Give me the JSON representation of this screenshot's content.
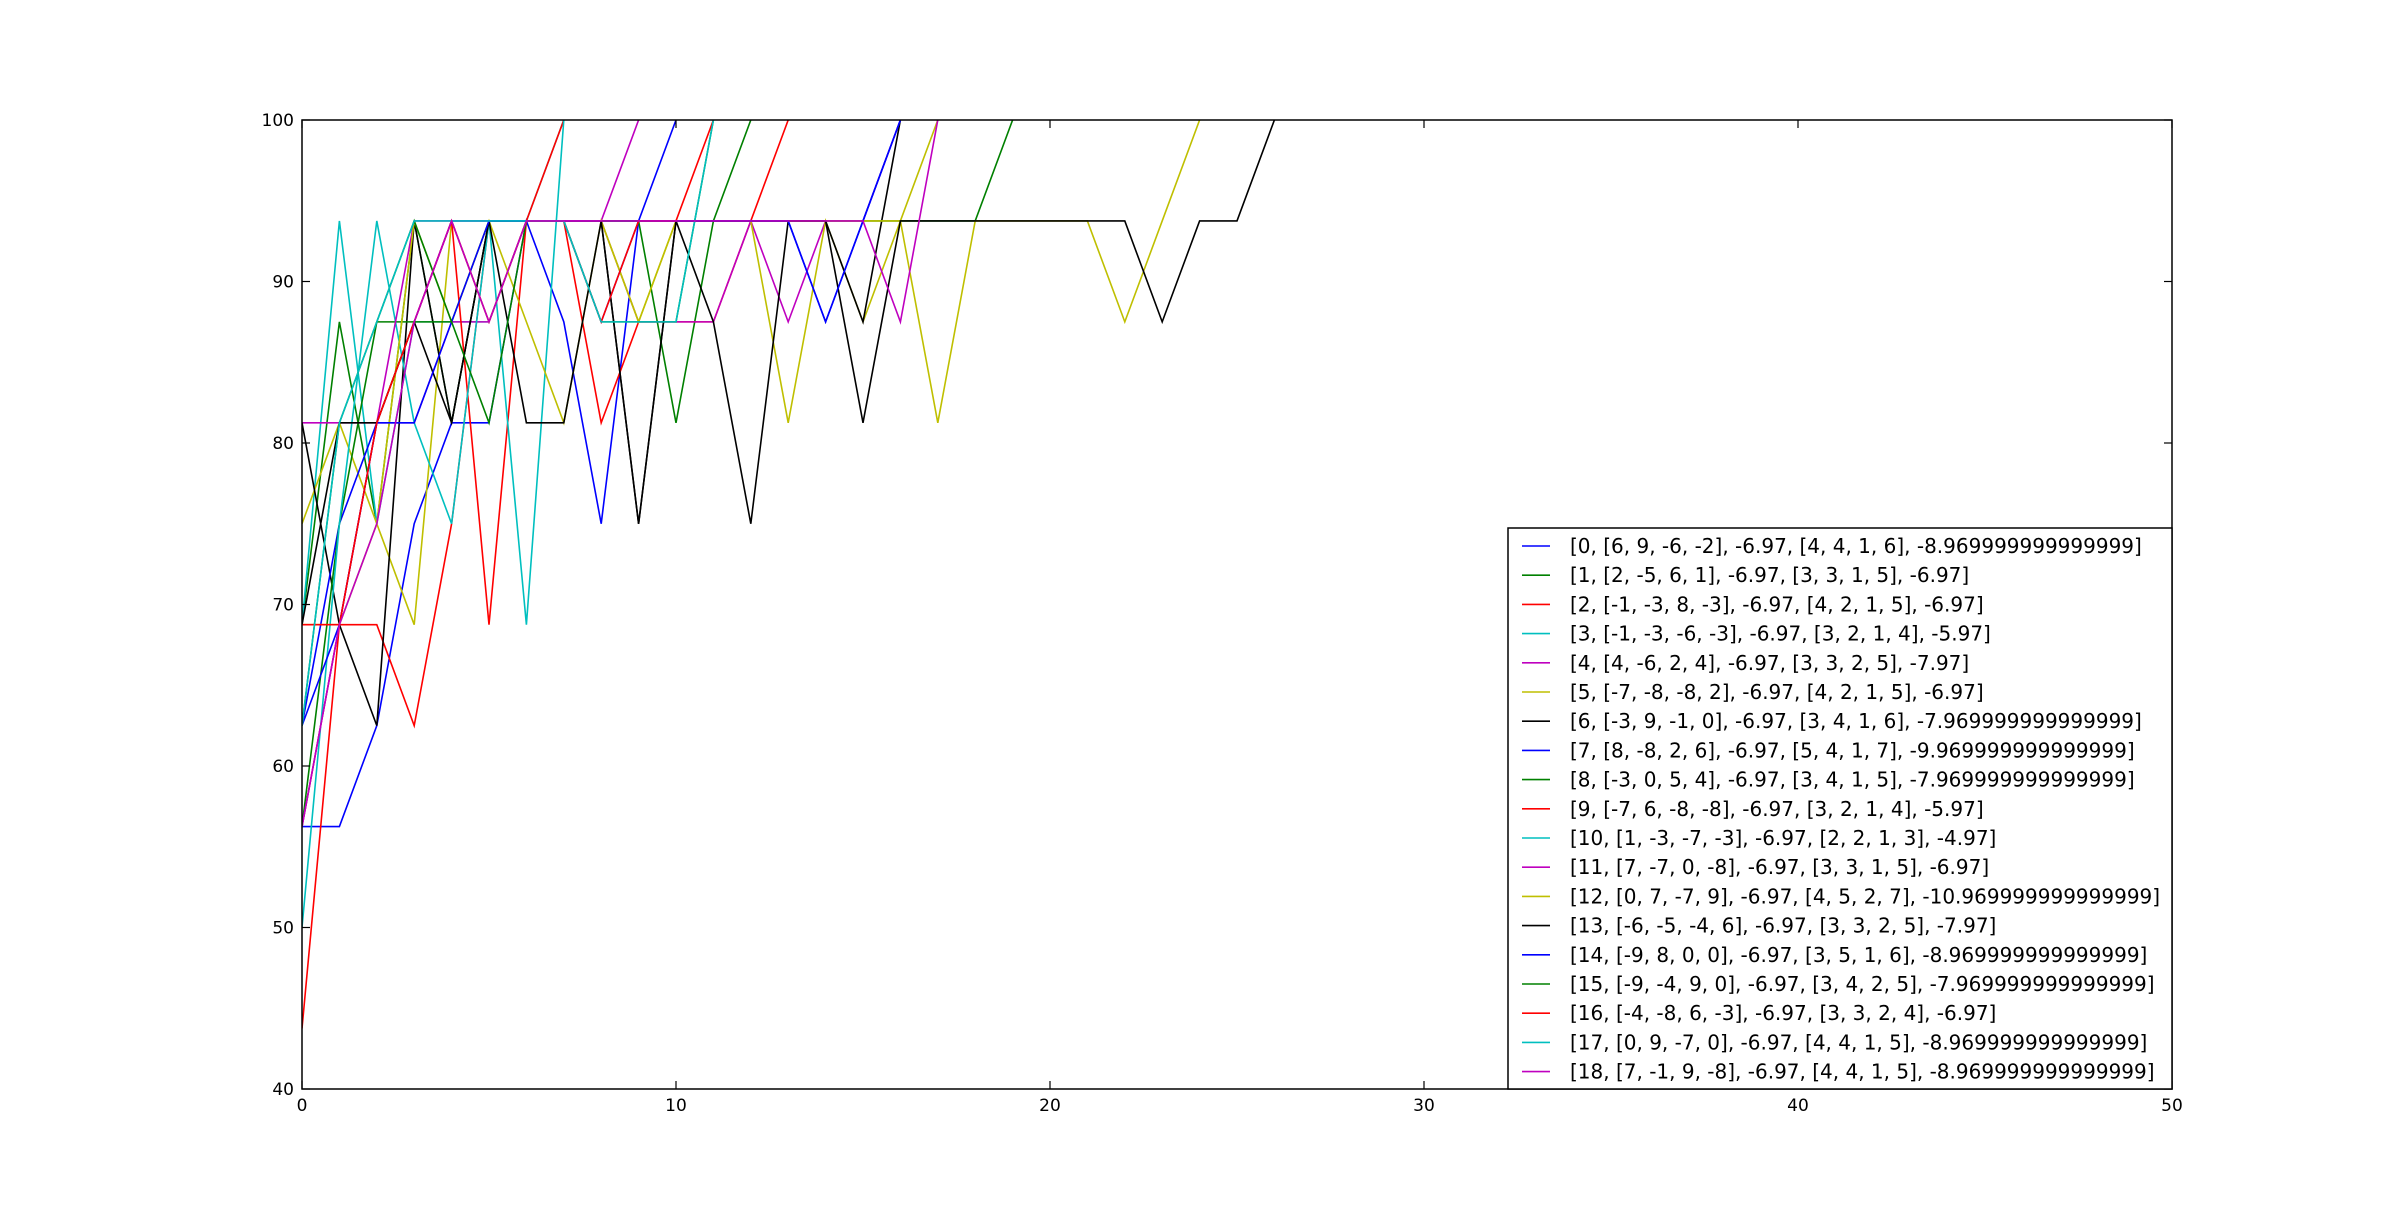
{
  "chart_data": {
    "type": "line",
    "title": "",
    "xlabel": "",
    "ylabel": "",
    "xlim": [
      0,
      50
    ],
    "ylim": [
      40,
      100
    ],
    "x_ticks": [
      "0",
      "10",
      "20",
      "30",
      "40",
      "50"
    ],
    "y_ticks": [
      "40",
      "50",
      "60",
      "70",
      "80",
      "90",
      "100"
    ],
    "grid": false,
    "legend_position": "lower-right",
    "series": [
      {
        "name": "[0, [6, 9, -6, -2], -6.97, [4, 4, 1, 6], -8.969999999999999]",
        "color": "#0000ff",
        "x": [
          0,
          1,
          2,
          3,
          4,
          5,
          6,
          7,
          8,
          9,
          10
        ],
        "y": [
          56.25,
          56.25,
          62.5,
          75,
          81.25,
          81.25,
          93.75,
          87.5,
          75,
          93.75,
          100
        ]
      },
      {
        "name": "[1, [2, -5, 6, 1], -6.97, [3, 3, 1, 5], -6.97]",
        "color": "#008000",
        "x": [
          0,
          1,
          2,
          3,
          4,
          5,
          6,
          7,
          8,
          9,
          10,
          11,
          12
        ],
        "y": [
          68.75,
          87.5,
          75,
          93.75,
          81.25,
          93.75,
          93.75,
          93.75,
          93.75,
          93.75,
          81.25,
          93.75,
          100
        ]
      },
      {
        "name": "[2, [-1, -3, 8, -3], -6.97, [4, 2, 1, 5], -6.97]",
        "color": "#ff0000",
        "x": [
          0,
          1,
          2,
          3,
          4,
          5,
          6,
          7,
          8,
          9,
          10,
          11,
          12,
          13
        ],
        "y": [
          56.25,
          68.75,
          68.75,
          62.5,
          75,
          93.75,
          93.75,
          93.75,
          81.25,
          87.5,
          87.5,
          87.5,
          93.75,
          100
        ]
      },
      {
        "name": "[3, [-1, -3, -6, -3], -6.97, [3, 2, 1, 4], -5.97]",
        "color": "#00bfbf",
        "x": [
          0,
          1,
          2,
          3,
          4,
          5,
          6,
          7
        ],
        "y": [
          68.75,
          93.75,
          75,
          87.5,
          87.5,
          87.5,
          93.75,
          100
        ]
      },
      {
        "name": "[4, [4, -6, 2, 4], -6.97, [3, 3, 2, 5], -7.97]",
        "color": "#bf00bf",
        "x": [
          0,
          1,
          2,
          3,
          4,
          5,
          6,
          7,
          8,
          9,
          10,
          11,
          12,
          13,
          14,
          15,
          16
        ],
        "y": [
          81.25,
          81.25,
          81.25,
          81.25,
          87.5,
          87.5,
          93.75,
          93.75,
          93.75,
          87.5,
          87.5,
          87.5,
          93.75,
          87.5,
          93.75,
          93.75,
          100
        ]
      },
      {
        "name": "[5, [-7, -8, -8, 2], -6.97, [4, 2, 1, 5], -6.97]",
        "color": "#bfbf00",
        "x": [
          0,
          1,
          2,
          3,
          4,
          5,
          6,
          7,
          8,
          9,
          10,
          11,
          12,
          13,
          14,
          15,
          16,
          17
        ],
        "y": [
          75,
          81.25,
          75,
          68.75,
          93.75,
          87.5,
          93.75,
          93.75,
          93.75,
          87.5,
          93.75,
          93.75,
          93.75,
          81.25,
          93.75,
          87.5,
          93.75,
          100
        ]
      },
      {
        "name": "[6, [-3, 9, -1, 0], -6.97, [3, 4, 1, 6], -7.969999999999999]",
        "color": "#000000",
        "x": [
          0,
          1,
          2,
          3,
          4,
          5,
          6,
          7,
          8,
          9,
          10,
          11,
          12,
          13,
          14,
          15,
          16
        ],
        "y": [
          81.25,
          68.75,
          62.5,
          93.75,
          81.25,
          93.75,
          93.75,
          93.75,
          93.75,
          75,
          93.75,
          87.5,
          75,
          93.75,
          93.75,
          87.5,
          100
        ]
      },
      {
        "name": "[7, [8, -8, 2, 6], -6.97, [5, 4, 1, 7], -9.969999999999999]",
        "color": "#0000ff",
        "x": [
          0,
          1,
          2,
          3,
          4,
          5,
          6,
          7,
          8,
          9,
          10,
          11,
          12,
          13,
          14,
          15,
          16
        ],
        "y": [
          62.5,
          75,
          81.25,
          87.5,
          93.75,
          93.75,
          93.75,
          93.75,
          93.75,
          93.75,
          93.75,
          93.75,
          93.75,
          93.75,
          87.5,
          93.75,
          100
        ]
      },
      {
        "name": "[8, [-3, 0, 5, 4], -6.97, [3, 4, 1, 5], -7.969999999999999]",
        "color": "#008000",
        "x": [
          0,
          1,
          2,
          3,
          4,
          5,
          6,
          7,
          8,
          9,
          10,
          11,
          12,
          13,
          14,
          15,
          16,
          17,
          18,
          19
        ],
        "y": [
          56.25,
          75,
          87.5,
          87.5,
          87.5,
          93.75,
          93.75,
          93.75,
          93.75,
          93.75,
          93.75,
          93.75,
          93.75,
          93.75,
          93.75,
          93.75,
          93.75,
          93.75,
          93.75,
          100
        ]
      },
      {
        "name": "[9, [-7, 6, -8, -8], -6.97, [3, 2, 1, 4], -5.97]",
        "color": "#ff0000",
        "x": [
          0,
          1,
          2,
          3,
          4,
          5,
          6,
          7
        ],
        "y": [
          43.75,
          68.75,
          81.25,
          87.5,
          93.75,
          68.75,
          93.75,
          100
        ]
      },
      {
        "name": "[10, [1, -3, -7, -3], -6.97, [2, 2, 1, 3], -4.97]",
        "color": "#00bfbf",
        "x": [
          0,
          1,
          2,
          3,
          4,
          5,
          6,
          7
        ],
        "y": [
          50,
          75,
          93.75,
          81.25,
          75,
          93.75,
          68.75,
          100
        ]
      },
      {
        "name": "[11, [7, -7, 0, -8], -6.97, [3, 3, 1, 5], -6.97]",
        "color": "#bf00bf",
        "x": [
          0,
          1,
          2,
          3,
          4,
          5,
          6,
          7,
          8,
          9
        ],
        "y": [
          56.25,
          68.75,
          81.25,
          93.75,
          93.75,
          93.75,
          93.75,
          93.75,
          93.75,
          100
        ]
      },
      {
        "name": "[12, [0, 7, -7, 9], -6.97, [4, 5, 2, 7], -10.969999999999999]",
        "color": "#bfbf00",
        "x": [
          0,
          1,
          2,
          3,
          4,
          5,
          6,
          7,
          8,
          9,
          10,
          11,
          12,
          13,
          14,
          15,
          16,
          17,
          18,
          19,
          20,
          21,
          22,
          23,
          24
        ],
        "y": [
          68.75,
          68.75,
          75,
          93.75,
          87.5,
          93.75,
          87.5,
          81.25,
          93.75,
          87.5,
          93.75,
          93.75,
          93.75,
          93.75,
          93.75,
          93.75,
          93.75,
          81.25,
          93.75,
          93.75,
          93.75,
          93.75,
          87.5,
          93.75,
          100
        ]
      },
      {
        "name": "[13, [-6, -5, -4, 6], -6.97, [3, 3, 2, 5], -7.97]",
        "color": "#000000",
        "x": [
          0,
          1,
          2,
          3,
          4,
          5,
          6,
          7,
          8,
          9,
          10,
          11,
          12,
          13,
          14,
          15,
          16,
          17,
          18,
          19,
          20,
          21,
          22,
          23,
          24,
          25,
          26
        ],
        "y": [
          68.75,
          81.25,
          81.25,
          87.5,
          81.25,
          93.75,
          81.25,
          81.25,
          93.75,
          75,
          93.75,
          93.75,
          93.75,
          93.75,
          93.75,
          81.25,
          93.75,
          93.75,
          93.75,
          93.75,
          93.75,
          93.75,
          93.75,
          87.5,
          93.75,
          93.75,
          100
        ]
      },
      {
        "name": "[14, [-9, 8, 0, 0], -6.97, [3, 5, 1, 6], -8.969999999999999]",
        "color": "#0000ff",
        "x": [
          0,
          1,
          2,
          3,
          4,
          5,
          6,
          7,
          8,
          9,
          10,
          11,
          12,
          13,
          14,
          15,
          16
        ],
        "y": [
          62.5,
          68.75,
          81.25,
          81.25,
          87.5,
          93.75,
          93.75,
          93.75,
          87.5,
          93.75,
          93.75,
          93.75,
          93.75,
          93.75,
          87.5,
          93.75,
          100
        ]
      },
      {
        "name": "[15, [-9, -4, 9, 0], -6.97, [3, 4, 2, 5], -7.969999999999999]",
        "color": "#008000",
        "x": [
          0,
          1,
          2,
          3,
          4,
          5,
          6,
          7,
          8,
          9,
          10,
          11
        ],
        "y": [
          62.5,
          81.25,
          87.5,
          93.75,
          87.5,
          81.25,
          93.75,
          93.75,
          87.5,
          87.5,
          87.5,
          100
        ]
      },
      {
        "name": "[16, [-4, -8, 6, -3], -6.97, [3, 3, 2, 4], -6.97]",
        "color": "#ff0000",
        "x": [
          0,
          1,
          2,
          3,
          4,
          5,
          6,
          7,
          8,
          9,
          10,
          11
        ],
        "y": [
          68.75,
          68.75,
          81.25,
          87.5,
          93.75,
          87.5,
          93.75,
          93.75,
          87.5,
          93.75,
          93.75,
          100
        ]
      },
      {
        "name": "[17, [0, 9, -7, 0], -6.97, [4, 4, 1, 5], -8.969999999999999]",
        "color": "#00bfbf",
        "x": [
          0,
          1,
          2,
          3,
          4,
          5,
          6,
          7,
          8,
          9,
          10,
          11
        ],
        "y": [
          62.5,
          81.25,
          87.5,
          93.75,
          93.75,
          93.75,
          93.75,
          93.75,
          87.5,
          87.5,
          87.5,
          100
        ]
      },
      {
        "name": "[18, [7, -1, 9, -8], -6.97, [4, 4, 1, 5], -8.969999999999999]",
        "color": "#bf00bf",
        "x": [
          0,
          1,
          2,
          3,
          4,
          5,
          6,
          7,
          8,
          9,
          10,
          11,
          12,
          13,
          14,
          15,
          16,
          17
        ],
        "y": [
          56.25,
          68.75,
          75,
          87.5,
          93.75,
          87.5,
          93.75,
          93.75,
          93.75,
          93.75,
          93.75,
          93.75,
          93.75,
          93.75,
          93.75,
          93.75,
          87.5,
          100
        ]
      }
    ]
  }
}
